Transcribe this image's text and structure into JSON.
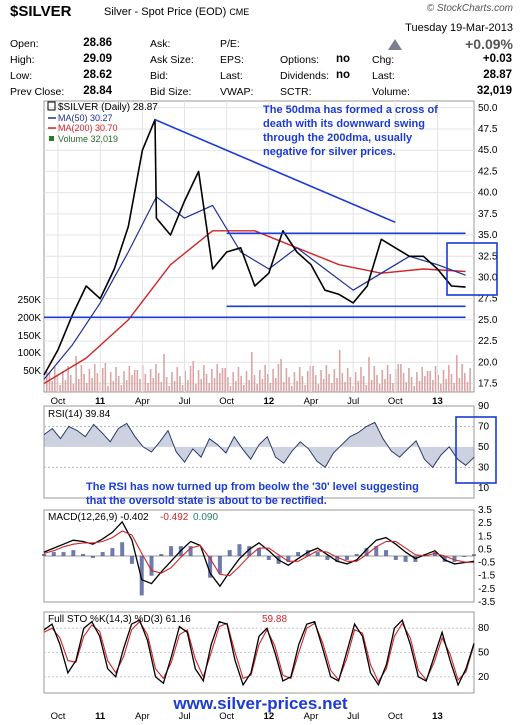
{
  "header": {
    "title": "$SILVER",
    "subtitle": "Silver - Spot Price (EOD)",
    "exchange": "CME",
    "brand": "© StockCharts.com",
    "date": "Tuesday  19-Mar-2013",
    "change_pct": "+0.09%",
    "quote": [
      {
        "label": "Open:",
        "value": "28.86"
      },
      {
        "label": "High:",
        "value": "29.09"
      },
      {
        "label": "Low:",
        "value": "28.62"
      },
      {
        "label": "Prev Close:",
        "value": "28.84"
      }
    ],
    "quote2": [
      {
        "label": "Ask:",
        "value": ""
      },
      {
        "label": "Ask Size:",
        "value": ""
      },
      {
        "label": "Bid:",
        "value": ""
      },
      {
        "label": "Bid Size:",
        "value": ""
      }
    ],
    "quote3": [
      {
        "label": "P/E:",
        "value": ""
      },
      {
        "label": "EPS:",
        "value": ""
      },
      {
        "label": "Last:",
        "value": ""
      },
      {
        "label": "VWAP:",
        "value": ""
      }
    ],
    "quote4": [
      {
        "label": "",
        "value": ""
      },
      {
        "label": "Options:",
        "value": "no"
      },
      {
        "label": "Dividends:",
        "value": "no"
      },
      {
        "label": "SCTR:",
        "value": ""
      }
    ],
    "quote5": [
      {
        "label": "",
        "value": ""
      },
      {
        "label": "Chg:",
        "value": "+0.03"
      },
      {
        "label": "Last:",
        "value": "28.87"
      },
      {
        "label": "Volume:",
        "value": "32,019"
      }
    ]
  },
  "colors": {
    "price": "#000000",
    "ma50": "#1f2f9a",
    "ma200": "#d0252a",
    "volume": "#d9a6a6",
    "annotation": "#1b3bd4",
    "rsi": "#2a3a6a",
    "rsi_fill": "#6f7fa8",
    "macd_hist": "#4a5a98",
    "sto_k": "#000000",
    "sto_d": "#d0252a"
  },
  "footer": "www.silver-prices.net",
  "chart_data": [
    {
      "panel": "price",
      "type": "line",
      "legend": [
        "$SILVER (Daily) 28.87",
        "MA(50) 30.27",
        "MA(200) 30.70",
        "Volume 32,019"
      ],
      "x_ticks": [
        "Oct",
        "11",
        "Apr",
        "Jul",
        "Oct",
        "12",
        "Apr",
        "Jul",
        "Oct",
        "13"
      ],
      "y_ticks": [
        "50.0",
        "47.5",
        "45.0",
        "42.5",
        "40.0",
        "37.5",
        "35.0",
        "32.5",
        "30.0",
        "27.5",
        "25.0",
        "22.5",
        "20.0",
        "17.5"
      ],
      "volume_ticks": [
        "250K",
        "200K",
        "150K",
        "100K",
        "50K"
      ],
      "ylim": [
        16.5,
        50.8
      ],
      "annotation": "The 50dma has formed a cross of death with its downward swing through the 200dma, usually negative for silver prices.",
      "series": [
        {
          "name": "$SILVER",
          "x": [
            "2010-09",
            "2010-10",
            "2010-11",
            "2010-12",
            "2011-01",
            "2011-02",
            "2011-03",
            "2011-04",
            "2011-04-28",
            "2011-05",
            "2011-06",
            "2011-07",
            "2011-08",
            "2011-09",
            "2011-10",
            "2011-11",
            "2011-12",
            "2012-01",
            "2012-02",
            "2012-03",
            "2012-04",
            "2012-05",
            "2012-06",
            "2012-07",
            "2012-08",
            "2012-09",
            "2012-10",
            "2012-11",
            "2012-12",
            "2013-01",
            "2013-02",
            "2013-03"
          ],
          "y": [
            18.5,
            21.5,
            25.5,
            29,
            27.5,
            31,
            36,
            45,
            48.6,
            37,
            35,
            39,
            42.5,
            31,
            33,
            33.5,
            29,
            30.5,
            35.5,
            33,
            31.5,
            28.5,
            28,
            27,
            29,
            34.5,
            33.5,
            32.5,
            32.5,
            31,
            29,
            28.87
          ]
        },
        {
          "name": "MA(50)",
          "x": [
            "2010-09",
            "2010-11",
            "2011-01",
            "2011-03",
            "2011-05",
            "2011-07",
            "2011-09",
            "2011-11",
            "2012-01",
            "2012-03",
            "2012-05",
            "2012-07",
            "2012-09",
            "2012-11",
            "2013-01",
            "2013-03"
          ],
          "y": [
            18,
            22,
            27,
            33,
            39.5,
            37,
            38.5,
            33,
            31,
            33.5,
            31,
            28.5,
            30.5,
            32.5,
            31.5,
            30.27
          ]
        },
        {
          "name": "MA(200)",
          "x": [
            "2010-09",
            "2010-12",
            "2011-03",
            "2011-06",
            "2011-09",
            "2011-12",
            "2012-03",
            "2012-06",
            "2012-09",
            "2012-12",
            "2013-03"
          ],
          "y": [
            17.5,
            20.5,
            25,
            31.5,
            35.5,
            35.5,
            33.5,
            31.5,
            30.5,
            31,
            30.7
          ]
        }
      ],
      "trendlines": [
        {
          "from": [
            "2011-04-28",
            48.6
          ],
          "to": [
            "2012-10",
            36.5
          ]
        },
        {
          "from": [
            "2011-10",
            35.2
          ],
          "to": [
            "2013-03",
            35.2
          ]
        },
        {
          "from": [
            "2011-10",
            26.6
          ],
          "to": [
            "2013-03",
            26.6
          ]
        },
        {
          "from": [
            "2010-09",
            25.3
          ],
          "to": [
            "2013-03",
            25.3
          ]
        }
      ]
    },
    {
      "panel": "rsi",
      "type": "area",
      "legend": "RSI(14) 39.84",
      "y_ticks": [
        "90",
        "70",
        "50",
        "30",
        "10"
      ],
      "ylim": [
        0,
        90
      ],
      "annotation": "The RSI has now turned up from beolw the '30' level suggesting that the oversold state is about to be rectified.",
      "values": [
        62,
        68,
        58,
        70,
        66,
        60,
        72,
        64,
        55,
        68,
        73,
        60,
        50,
        45,
        55,
        66,
        45,
        35,
        48,
        40,
        58,
        52,
        44,
        60,
        48,
        38,
        52,
        60,
        40,
        34,
        46,
        55,
        48,
        36,
        30,
        44,
        52,
        60,
        64,
        70,
        74,
        58,
        46,
        40,
        48,
        56,
        38,
        30,
        42,
        50,
        38,
        32,
        39.84
      ]
    },
    {
      "panel": "macd",
      "type": "line",
      "legend": [
        "MACD(12,26,9) -0.402",
        "-0.492",
        "0.090"
      ],
      "y_ticks": [
        "3.5",
        "2.5",
        "1.5",
        "0.5",
        "-0.5",
        "-1.5",
        "-2.5",
        "-3.5"
      ],
      "ylim": [
        -3.5,
        3.5
      ],
      "macd": [
        0.3,
        0.6,
        0.9,
        1.2,
        1.1,
        0.9,
        1.3,
        1.8,
        2.6,
        1.2,
        -1.8,
        -2.1,
        -1.2,
        -0.4,
        0.4,
        1.1,
        0.8,
        -1.3,
        -2.3,
        -1.2,
        -0.2,
        0.5,
        1.0,
        0.4,
        -0.3,
        -0.7,
        -0.2,
        0.3,
        0.6,
        0.1,
        -0.4,
        -0.6,
        -0.3,
        0.5,
        1.2,
        1.4,
        0.9,
        0.3,
        -0.2,
        0.1,
        0.4,
        -0.3,
        -0.6,
        -0.5,
        -0.402
      ],
      "signal": [
        0.2,
        0.4,
        0.7,
        0.9,
        1.0,
        1.0,
        1.1,
        1.4,
        1.9,
        1.6,
        0.2,
        -1.1,
        -1.3,
        -0.9,
        -0.1,
        0.6,
        0.8,
        -0.2,
        -1.4,
        -1.5,
        -0.8,
        0.0,
        0.6,
        0.6,
        0.1,
        -0.4,
        -0.4,
        0.0,
        0.4,
        0.3,
        -0.1,
        -0.4,
        -0.4,
        0.1,
        0.7,
        1.1,
        1.1,
        0.6,
        0.1,
        0.0,
        0.2,
        0.0,
        -0.3,
        -0.45,
        -0.492
      ]
    },
    {
      "panel": "stochastic",
      "type": "line",
      "legend": [
        "Full STO %K(14,3) %D(3) 61.16",
        "59.88"
      ],
      "y_ticks": [
        "80",
        "50",
        "20"
      ],
      "ylim": [
        0,
        100
      ],
      "k": [
        78,
        85,
        60,
        25,
        40,
        80,
        88,
        70,
        30,
        20,
        55,
        85,
        90,
        65,
        20,
        12,
        45,
        82,
        75,
        30,
        15,
        60,
        88,
        85,
        40,
        10,
        25,
        70,
        80,
        50,
        15,
        20,
        60,
        85,
        88,
        55,
        20,
        15,
        50,
        85,
        70,
        25,
        10,
        35,
        80,
        90,
        60,
        20,
        15,
        45,
        75,
        40,
        10,
        30,
        61.16
      ],
      "d": [
        75,
        80,
        68,
        40,
        38,
        70,
        84,
        76,
        40,
        25,
        45,
        78,
        88,
        72,
        30,
        18,
        38,
        72,
        78,
        42,
        20,
        50,
        82,
        86,
        50,
        18,
        22,
        60,
        78,
        58,
        22,
        18,
        50,
        80,
        86,
        62,
        28,
        16,
        42,
        78,
        74,
        35,
        14,
        30,
        70,
        86,
        68,
        28,
        16,
        38,
        68,
        48,
        16,
        26,
        59.88
      ]
    }
  ]
}
